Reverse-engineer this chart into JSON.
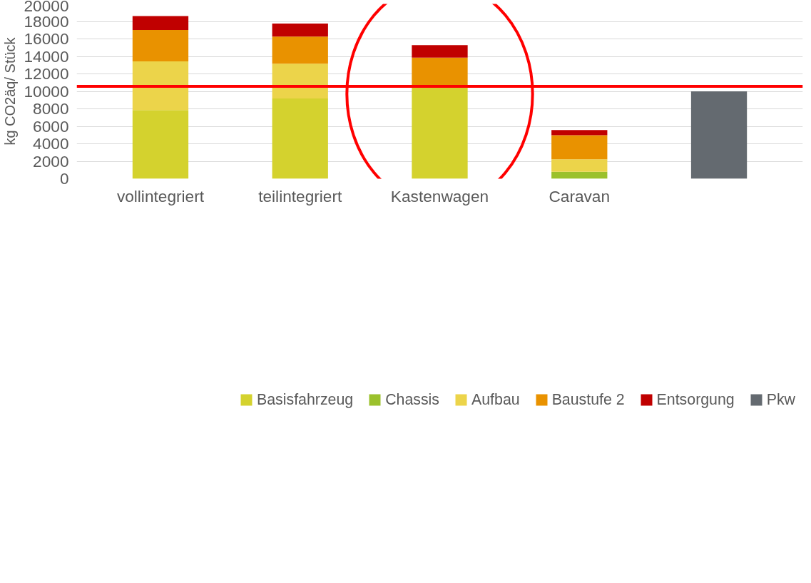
{
  "chart_data": {
    "type": "bar",
    "stacked": true,
    "ylabel": "kg CO2äq/ Stück",
    "categories": [
      "vollintegriert",
      "teilintegriert",
      "Kastenwagen",
      "Caravan",
      null
    ],
    "series": [
      {
        "name": "Basisfahrzeug",
        "color": "#d4d22e",
        "values": [
          7850,
          9180,
          10570,
          0,
          0
        ]
      },
      {
        "name": "Chassis",
        "color": "#9bc12c",
        "values": [
          0,
          0,
          0,
          790,
          0
        ]
      },
      {
        "name": "Aufbau",
        "color": "#ecd44a",
        "values": [
          5570,
          3980,
          0,
          1430,
          0
        ]
      },
      {
        "name": "Baustufe 2",
        "color": "#e99200",
        "values": [
          3610,
          3110,
          3290,
          2750,
          0
        ]
      },
      {
        "name": "Entsorgung",
        "color": "#c00000",
        "values": [
          1580,
          1480,
          1420,
          600,
          0
        ]
      },
      {
        "name": "Pkw",
        "color": "#646a70",
        "values": [
          0,
          0,
          0,
          0,
          10000
        ]
      }
    ],
    "ylim": [
      0,
      20000
    ],
    "yticks": [
      0,
      2000,
      4000,
      6000,
      8000,
      10000,
      12000,
      14000,
      16000,
      18000,
      20000
    ],
    "ref_lines": [
      {
        "axis": "y",
        "value": 10570,
        "label": null,
        "color": "#ff0000"
      }
    ],
    "grid": "y",
    "legend": "bottom"
  }
}
